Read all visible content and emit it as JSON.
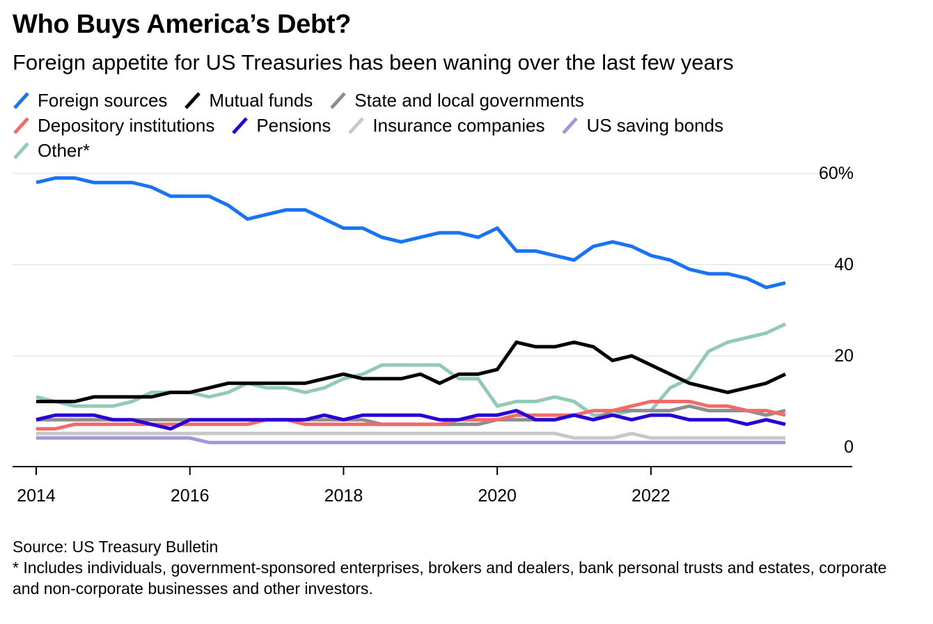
{
  "title": "Who Buys America’s Debt?",
  "subtitle": "Foreign appetite for US Treasuries has been waning over the last few years",
  "source": "Source: US Treasury Bulletin",
  "footnote": "* Includes individuals, government-sponsored enterprises, brokers and dealers, bank personal trusts and estates, corporate and non-corporate businesses and other investors.",
  "chart_data": {
    "type": "line",
    "title": "Who Buys America’s Debt?",
    "subtitle": "Foreign appetite for US Treasuries has been waning over the last few years",
    "x": [
      2014.0,
      2014.25,
      2014.5,
      2014.75,
      2015.0,
      2015.25,
      2015.5,
      2015.75,
      2016.0,
      2016.25,
      2016.5,
      2016.75,
      2017.0,
      2017.25,
      2017.5,
      2017.75,
      2018.0,
      2018.25,
      2018.5,
      2018.75,
      2019.0,
      2019.25,
      2019.5,
      2019.75,
      2020.0,
      2020.25,
      2020.5,
      2020.75,
      2021.0,
      2021.25,
      2021.5,
      2021.75,
      2022.0,
      2022.25,
      2022.5,
      2022.75,
      2023.0,
      2023.25,
      2023.5,
      2023.75
    ],
    "x_ticks": [
      "2014",
      "2016",
      "2018",
      "2020",
      "2022"
    ],
    "x_tick_values": [
      2014,
      2016,
      2018,
      2020,
      2022
    ],
    "y_ticks": [
      "0",
      "20",
      "40",
      "60%"
    ],
    "y_tick_values": [
      0,
      20,
      40,
      60
    ],
    "ylim": [
      -2,
      62
    ],
    "xlim": [
      2013.7,
      2024.7
    ],
    "grid": true,
    "legend_position": "top",
    "series": [
      {
        "name": "Foreign sources",
        "color": "#1a73f2",
        "values": [
          58,
          59,
          59,
          58,
          58,
          58,
          57,
          55,
          55,
          55,
          53,
          50,
          51,
          52,
          52,
          50,
          48,
          48,
          46,
          45,
          46,
          47,
          47,
          46,
          48,
          43,
          43,
          42,
          41,
          44,
          45,
          44,
          42,
          41,
          39,
          38,
          38,
          37,
          35,
          36
        ]
      },
      {
        "name": "Mutual funds",
        "color": "#000000",
        "values": [
          10,
          10,
          10,
          11,
          11,
          11,
          11,
          12,
          12,
          13,
          14,
          14,
          14,
          14,
          14,
          15,
          16,
          15,
          15,
          15,
          16,
          14,
          16,
          16,
          17,
          23,
          22,
          22,
          23,
          22,
          19,
          20,
          18,
          16,
          14,
          13,
          12,
          13,
          14,
          16
        ]
      },
      {
        "name": "State and local governments",
        "color": "#8e8e8e",
        "values": [
          6,
          6,
          6,
          6,
          6,
          6,
          6,
          6,
          6,
          6,
          6,
          6,
          6,
          6,
          6,
          6,
          6,
          6,
          5,
          5,
          5,
          5,
          5,
          5,
          6,
          6,
          6,
          6,
          7,
          6,
          8,
          8,
          8,
          8,
          9,
          8,
          8,
          8,
          7,
          8
        ]
      },
      {
        "name": "Depository institutions",
        "color": "#f26b6b",
        "values": [
          4,
          4,
          5,
          5,
          5,
          5,
          5,
          5,
          5,
          5,
          5,
          5,
          6,
          6,
          5,
          5,
          5,
          5,
          5,
          5,
          5,
          5,
          6,
          6,
          6,
          7,
          7,
          7,
          7,
          8,
          8,
          9,
          10,
          10,
          10,
          9,
          9,
          8,
          8,
          7
        ]
      },
      {
        "name": "Pensions",
        "color": "#2800d7",
        "values": [
          6,
          7,
          7,
          7,
          6,
          6,
          5,
          4,
          6,
          6,
          6,
          6,
          6,
          6,
          6,
          7,
          6,
          7,
          7,
          7,
          7,
          6,
          6,
          7,
          7,
          8,
          6,
          6,
          7,
          6,
          7,
          6,
          7,
          7,
          6,
          6,
          6,
          5,
          6,
          5
        ]
      },
      {
        "name": "Insurance companies",
        "color": "#c8c8c8",
        "values": [
          3,
          3,
          3,
          3,
          3,
          3,
          3,
          3,
          3,
          3,
          3,
          3,
          3,
          3,
          3,
          3,
          3,
          3,
          3,
          3,
          3,
          3,
          3,
          3,
          3,
          3,
          3,
          3,
          2,
          2,
          2,
          3,
          2,
          2,
          2,
          2,
          2,
          2,
          2,
          2
        ]
      },
      {
        "name": "US saving bonds",
        "color": "#a596d8",
        "values": [
          2,
          2,
          2,
          2,
          2,
          2,
          2,
          2,
          2,
          1,
          1,
          1,
          1,
          1,
          1,
          1,
          1,
          1,
          1,
          1,
          1,
          1,
          1,
          1,
          1,
          1,
          1,
          1,
          1,
          1,
          1,
          1,
          1,
          1,
          1,
          1,
          1,
          1,
          1,
          1
        ]
      },
      {
        "name": "Other*",
        "color": "#93c9b9",
        "values": [
          11,
          10,
          9,
          9,
          9,
          10,
          12,
          12,
          12,
          11,
          12,
          14,
          13,
          13,
          12,
          13,
          15,
          16,
          18,
          18,
          18,
          18,
          15,
          15,
          9,
          10,
          10,
          11,
          10,
          7,
          7,
          8,
          8,
          13,
          15,
          21,
          23,
          24,
          25,
          27
        ]
      }
    ]
  }
}
